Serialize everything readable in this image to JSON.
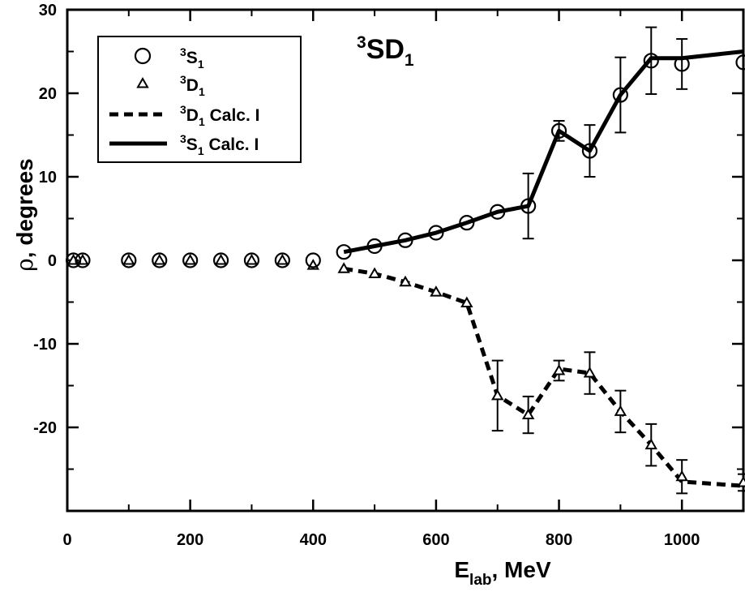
{
  "chart_data": {
    "type": "line",
    "title_parts": {
      "sup": "3",
      "main": "SD",
      "sub": "1"
    },
    "xlabel_parts": {
      "main": "E",
      "sub": "lab",
      "rest": ",  MeV"
    },
    "ylabel_parts": {
      "greek": "ρ",
      "rest": ",  degrees"
    },
    "xlim": [
      0,
      1100
    ],
    "ylim": [
      -30,
      30
    ],
    "xticks": [
      0,
      200,
      400,
      600,
      800,
      1000
    ],
    "yticks": [
      -20,
      -10,
      0,
      10,
      20,
      30
    ],
    "xtick_labels": [
      "0",
      "200",
      "400",
      "600",
      "800",
      "1000"
    ],
    "ytick_labels": [
      "-20",
      "-10",
      "0",
      "10",
      "20",
      "30"
    ],
    "legend_position": "top-left",
    "legend": [
      {
        "sup": "3",
        "main": "S",
        "sub": "1",
        "suffix": ""
      },
      {
        "sup": "3",
        "main": "D",
        "sub": "1",
        "suffix": ""
      },
      {
        "sup": "3",
        "main": "D",
        "sub": "1",
        "suffix": " Calc. I"
      },
      {
        "sup": "3",
        "main": "S",
        "sub": "1",
        "suffix": " Calc. I"
      }
    ],
    "series": [
      {
        "name": "3S1",
        "marker": "circle",
        "x": [
          10,
          25,
          100,
          150,
          200,
          250,
          300,
          350,
          400,
          450,
          500,
          550,
          600,
          650,
          700,
          750,
          800,
          850,
          900,
          950,
          1000,
          1100
        ],
        "y": [
          0,
          0,
          0,
          0,
          0,
          0,
          0,
          0,
          0,
          1.0,
          1.7,
          2.4,
          3.3,
          4.5,
          5.8,
          6.5,
          15.5,
          13.1,
          19.8,
          23.9,
          23.5,
          23.7
        ],
        "err": [
          0,
          0,
          0,
          0,
          0,
          0,
          0,
          0,
          0,
          0,
          0,
          0,
          0,
          0,
          0,
          3.9,
          1.2,
          3.1,
          4.5,
          4.0,
          3.0,
          0
        ]
      },
      {
        "name": "3D1",
        "marker": "triangle",
        "x": [
          10,
          25,
          100,
          150,
          200,
          250,
          300,
          350,
          400,
          450,
          500,
          550,
          600,
          650,
          700,
          750,
          800,
          850,
          900,
          950,
          1000,
          1100
        ],
        "y": [
          0,
          0,
          0,
          0,
          0,
          0,
          0,
          0,
          -0.6,
          -1.0,
          -1.6,
          -2.6,
          -3.8,
          -5.1,
          -16.2,
          -18.5,
          -13.2,
          -13.5,
          -18.1,
          -22.1,
          -25.9,
          -26.6
        ],
        "err": [
          0,
          0,
          0,
          0,
          0,
          0,
          0,
          0,
          0,
          0,
          0,
          0,
          0,
          0,
          4.2,
          2.2,
          1.2,
          2.5,
          2.5,
          2.5,
          2.0,
          1.0
        ]
      },
      {
        "name": "3D1 Calc. I",
        "style": "dashed",
        "x": [
          450,
          500,
          550,
          600,
          650,
          700,
          750,
          800,
          850,
          900,
          950,
          1000,
          1100
        ],
        "y": [
          -1.0,
          -1.6,
          -2.6,
          -3.8,
          -5.1,
          -16.2,
          -18.5,
          -13.0,
          -13.5,
          -18.1,
          -22.1,
          -26.5,
          -27.0
        ]
      },
      {
        "name": "3S1 Calc. I",
        "style": "solid",
        "x": [
          450,
          500,
          550,
          600,
          650,
          700,
          750,
          800,
          850,
          900,
          950,
          1000,
          1100
        ],
        "y": [
          1.0,
          1.7,
          2.4,
          3.3,
          4.5,
          5.8,
          6.5,
          15.5,
          13.1,
          19.8,
          24.2,
          24.2,
          25.0
        ]
      }
    ]
  }
}
